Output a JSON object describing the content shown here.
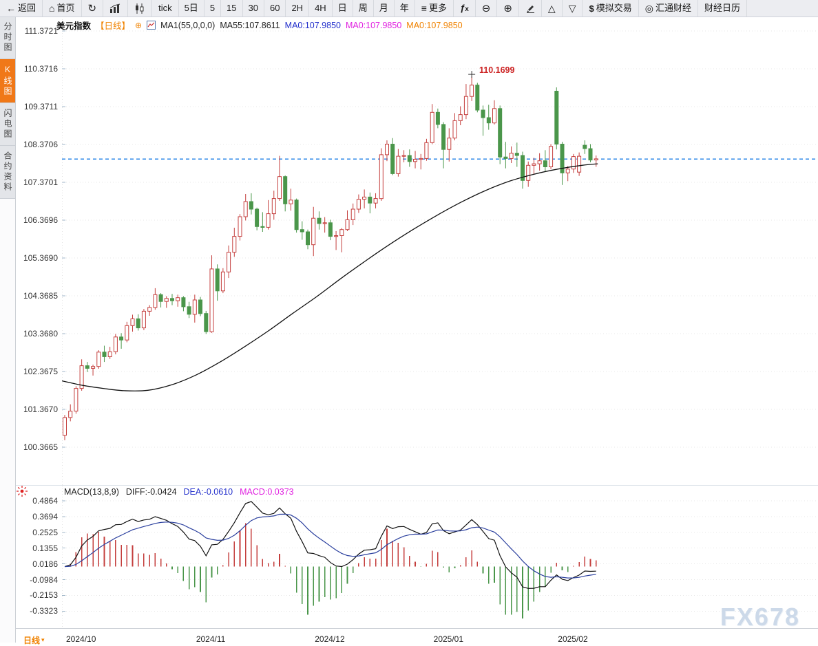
{
  "toolbar": {
    "items": [
      {
        "name": "back",
        "icon": "back-arrow-icon",
        "label": "返回"
      },
      {
        "name": "home",
        "icon": "home-icon",
        "label": "首页"
      },
      {
        "name": "refresh",
        "icon": "refresh-icon",
        "label": ""
      },
      {
        "name": "bar-chart",
        "icon": "bar-chart-icon",
        "label": ""
      },
      {
        "name": "candlestick",
        "icon": "candlestick-icon",
        "label": ""
      },
      {
        "name": "tick",
        "icon": null,
        "label": "tick"
      },
      {
        "name": "5d",
        "icon": null,
        "label": "5日"
      },
      {
        "name": "5",
        "icon": null,
        "label": "5"
      },
      {
        "name": "15",
        "icon": null,
        "label": "15"
      },
      {
        "name": "30",
        "icon": null,
        "label": "30"
      },
      {
        "name": "60",
        "icon": null,
        "label": "60"
      },
      {
        "name": "2h",
        "icon": null,
        "label": "2H"
      },
      {
        "name": "4h",
        "icon": null,
        "label": "4H"
      },
      {
        "name": "day",
        "icon": null,
        "label": "日"
      },
      {
        "name": "week",
        "icon": null,
        "label": "周"
      },
      {
        "name": "month",
        "icon": null,
        "label": "月"
      },
      {
        "name": "year",
        "icon": null,
        "label": "年"
      },
      {
        "name": "more",
        "icon": "more-icon",
        "label": "更多"
      },
      {
        "name": "fx",
        "icon": "fx-icon",
        "label": ""
      },
      {
        "name": "zoom-out",
        "icon": "zoom-out-icon",
        "label": ""
      },
      {
        "name": "zoom-in",
        "icon": "zoom-in-icon",
        "label": ""
      },
      {
        "name": "draw",
        "icon": "pencil-icon",
        "label": ""
      },
      {
        "name": "triangle-up",
        "icon": "triangle-up-icon",
        "label": ""
      },
      {
        "name": "triangle-down",
        "icon": "triangle-down-icon",
        "label": ""
      },
      {
        "name": "sim-trade",
        "icon": "dollar-icon",
        "label": "模拟交易"
      },
      {
        "name": "huitong",
        "icon": "huitong-logo-icon",
        "label": "汇通财经"
      },
      {
        "name": "calendar",
        "icon": null,
        "label": "财经日历"
      }
    ]
  },
  "sidebar": {
    "items": [
      {
        "name": "tab-time-share",
        "label": "分时图",
        "active": false
      },
      {
        "name": "tab-kline",
        "label": "K线图",
        "active": true
      },
      {
        "name": "tab-lightning",
        "label": "闪电图",
        "active": false
      },
      {
        "name": "tab-contract-info",
        "label": "合约资料",
        "active": false
      }
    ]
  },
  "chart_header": {
    "symbol": "美元指数",
    "period_tag": "【日线】",
    "expand_icon": "⊕",
    "ma_settings": "MA1(55,0,0,0)",
    "ma55": "MA55:107.8611",
    "ma0_blue": "MA0:107.9850",
    "ma0_magenta": "MA0:107.9850",
    "ma0_orange": "MA0:107.9850"
  },
  "annotation": {
    "peak_label": "110.1699"
  },
  "macd_header": {
    "title": "MACD(13,8,9)",
    "diff": "DIFF:-0.0424",
    "dea": "DEA:-0.0610",
    "macd": "MACD:0.0373"
  },
  "main_axis": {
    "labels": [
      "111.3721",
      "110.3716",
      "109.3711",
      "108.3706",
      "107.3701",
      "106.3696",
      "105.3690",
      "104.3685",
      "103.3680",
      "102.3675",
      "101.3670",
      "100.3665"
    ]
  },
  "macd_axis": {
    "labels": [
      "0.4864",
      "0.3694",
      "0.2525",
      "0.1355",
      "0.0186",
      "-0.0984",
      "-0.2153",
      "-0.3323"
    ]
  },
  "x_axis": {
    "labels": [
      "2024/10",
      "2024/11",
      "2024/12",
      "2025/01",
      "2025/02"
    ],
    "indices": [
      0,
      23,
      44,
      65,
      87
    ]
  },
  "period_selector": {
    "label": "日线",
    "caret": "▾"
  },
  "watermark": "FX678",
  "colors": {
    "up": "#c43e3c",
    "down": "#4a964a",
    "ma55": "#111111",
    "diff_line": "#111111",
    "dea_line": "#2a3f9e",
    "accent_orange": "#f08200",
    "price_line": "#1b7ee6",
    "annotation_red": "#cc2222",
    "grid": "#e7e7e7",
    "tick": "#9fb6c8"
  },
  "chart_data": {
    "type": "candlestick",
    "symbol": "美元指数",
    "period": "日线",
    "last_price": 107.985,
    "y_range": [
      100.3665,
      111.3721
    ],
    "macd_params": [
      13,
      8,
      9
    ],
    "macd_y_range": [
      -0.3323,
      0.4864
    ],
    "peak": {
      "index": 72,
      "price": 110.1699
    },
    "candles": [
      [
        100.68,
        101.22,
        100.55,
        101.15
      ],
      [
        101.15,
        101.5,
        101.05,
        101.32
      ],
      [
        101.32,
        101.98,
        101.25,
        101.92
      ],
      [
        101.92,
        102.69,
        101.86,
        102.52
      ],
      [
        102.52,
        102.62,
        102.35,
        102.45
      ],
      [
        102.45,
        102.55,
        102.26,
        102.5
      ],
      [
        102.5,
        102.93,
        102.44,
        102.88
      ],
      [
        102.88,
        103.05,
        102.62,
        102.76
      ],
      [
        102.76,
        103.02,
        102.7,
        102.89
      ],
      [
        102.89,
        103.36,
        102.82,
        103.28
      ],
      [
        103.28,
        103.38,
        102.97,
        103.2
      ],
      [
        103.2,
        103.68,
        103.14,
        103.58
      ],
      [
        103.58,
        103.87,
        103.42,
        103.76
      ],
      [
        103.76,
        103.88,
        103.45,
        103.52
      ],
      [
        103.52,
        104.02,
        103.46,
        103.96
      ],
      [
        103.96,
        104.12,
        103.84,
        104.06
      ],
      [
        104.06,
        104.57,
        104.0,
        104.4
      ],
      [
        104.4,
        104.44,
        104.06,
        104.22
      ],
      [
        104.22,
        104.36,
        104.05,
        104.3
      ],
      [
        104.3,
        104.42,
        104.12,
        104.24
      ],
      [
        104.24,
        104.4,
        104.08,
        104.32
      ],
      [
        104.32,
        104.36,
        103.96,
        104.08
      ],
      [
        104.08,
        104.21,
        103.78,
        103.88
      ],
      [
        103.88,
        104.4,
        103.66,
        104.26
      ],
      [
        104.26,
        104.34,
        103.83,
        103.9
      ],
      [
        103.9,
        103.97,
        103.36,
        103.42
      ],
      [
        103.42,
        105.44,
        103.39,
        105.08
      ],
      [
        105.08,
        105.2,
        104.24,
        104.5
      ],
      [
        104.5,
        105.1,
        104.44,
        105.0
      ],
      [
        105.0,
        105.7,
        104.84,
        105.52
      ],
      [
        105.52,
        106.17,
        105.4,
        105.94
      ],
      [
        105.94,
        106.53,
        105.83,
        106.46
      ],
      [
        106.46,
        107.06,
        106.36,
        106.86
      ],
      [
        106.86,
        107.08,
        106.52,
        106.66
      ],
      [
        106.66,
        106.7,
        106.1,
        106.2
      ],
      [
        106.2,
        106.58,
        106.06,
        106.18
      ],
      [
        106.18,
        106.9,
        106.12,
        106.54
      ],
      [
        106.54,
        107.15,
        106.38,
        106.94
      ],
      [
        106.94,
        108.07,
        106.88,
        107.52
      ],
      [
        107.52,
        107.55,
        106.6,
        106.8
      ],
      [
        106.8,
        107.2,
        106.62,
        106.9
      ],
      [
        106.9,
        106.94,
        106.04,
        106.12
      ],
      [
        106.12,
        106.34,
        105.85,
        106.06
      ],
      [
        106.06,
        106.12,
        105.6,
        105.72
      ],
      [
        105.72,
        106.72,
        105.42,
        106.42
      ],
      [
        106.42,
        106.6,
        106.12,
        106.28
      ],
      [
        106.28,
        106.45,
        106.04,
        106.3
      ],
      [
        106.3,
        106.38,
        105.84,
        105.94
      ],
      [
        105.94,
        106.08,
        105.58,
        105.96
      ],
      [
        105.96,
        106.16,
        105.52,
        106.12
      ],
      [
        106.12,
        106.63,
        106.08,
        106.38
      ],
      [
        106.38,
        106.81,
        106.24,
        106.66
      ],
      [
        106.66,
        107.05,
        106.56,
        106.92
      ],
      [
        106.92,
        107.18,
        106.68,
        106.98
      ],
      [
        106.98,
        107.1,
        106.55,
        106.82
      ],
      [
        106.82,
        107.08,
        106.68,
        106.94
      ],
      [
        106.94,
        108.27,
        106.88,
        108.1
      ],
      [
        108.1,
        108.48,
        107.93,
        108.38
      ],
      [
        108.38,
        108.54,
        107.56,
        107.6
      ],
      [
        107.6,
        108.25,
        107.52,
        108.06
      ],
      [
        108.06,
        108.22,
        107.9,
        108.08
      ],
      [
        108.08,
        108.24,
        107.78,
        107.92
      ],
      [
        107.92,
        108.2,
        107.74,
        107.98
      ],
      [
        107.98,
        108.12,
        107.71,
        108.0
      ],
      [
        108.0,
        108.52,
        107.94,
        108.42
      ],
      [
        108.42,
        109.44,
        108.38,
        109.22
      ],
      [
        109.22,
        109.32,
        108.8,
        108.9
      ],
      [
        108.9,
        108.96,
        107.74,
        108.24
      ],
      [
        108.24,
        108.8,
        107.92,
        108.54
      ],
      [
        108.54,
        109.2,
        108.48,
        109.0
      ],
      [
        109.0,
        109.38,
        108.88,
        109.16
      ],
      [
        109.16,
        109.97,
        109.04,
        109.64
      ],
      [
        109.64,
        110.17,
        109.52,
        109.94
      ],
      [
        109.94,
        110.0,
        109.22,
        109.28
      ],
      [
        109.28,
        109.4,
        108.6,
        109.08
      ],
      [
        109.08,
        109.42,
        108.76,
        108.94
      ],
      [
        108.94,
        109.54,
        108.9,
        109.32
      ],
      [
        109.32,
        109.4,
        107.85,
        108.04
      ],
      [
        108.04,
        108.44,
        107.74,
        108.0
      ],
      [
        108.0,
        108.32,
        107.88,
        108.14
      ],
      [
        108.14,
        108.42,
        107.78,
        108.08
      ],
      [
        108.08,
        108.18,
        107.2,
        107.42
      ],
      [
        107.42,
        107.92,
        107.25,
        107.82
      ],
      [
        107.82,
        108.02,
        107.58,
        107.86
      ],
      [
        107.86,
        108.14,
        107.68,
        107.94
      ],
      [
        107.94,
        108.22,
        107.66,
        107.78
      ],
      [
        107.78,
        108.38,
        107.72,
        108.32
      ],
      [
        109.78,
        109.88,
        108.24,
        108.38
      ],
      [
        108.38,
        108.44,
        107.3,
        107.62
      ],
      [
        107.62,
        107.8,
        107.4,
        107.72
      ],
      [
        107.72,
        108.12,
        107.62,
        108.05
      ],
      [
        107.64,
        108.16,
        107.54,
        108.06
      ],
      [
        108.35,
        108.48,
        108.12,
        108.26
      ],
      [
        108.26,
        108.38,
        107.9,
        107.96
      ],
      [
        107.96,
        108.08,
        107.78,
        107.99
      ]
    ],
    "ma55_points": [
      [
        -0.5,
        102.12
      ],
      [
        3.2,
        102.0
      ],
      [
        6.8,
        101.92
      ],
      [
        10.5,
        101.86
      ],
      [
        14.7,
        101.87
      ],
      [
        19.0,
        102.02
      ],
      [
        23.3,
        102.28
      ],
      [
        27.5,
        102.62
      ],
      [
        31.8,
        103.02
      ],
      [
        36.1,
        103.45
      ],
      [
        40.3,
        103.9
      ],
      [
        44.6,
        104.35
      ],
      [
        48.8,
        104.82
      ],
      [
        53.1,
        105.28
      ],
      [
        57.4,
        105.72
      ],
      [
        61.6,
        106.12
      ],
      [
        65.9,
        106.5
      ],
      [
        70.2,
        106.85
      ],
      [
        74.4,
        107.15
      ],
      [
        78.7,
        107.4
      ],
      [
        82.9,
        107.58
      ],
      [
        87.2,
        107.72
      ],
      [
        91.5,
        107.82
      ],
      [
        94.3,
        107.86
      ]
    ]
  }
}
